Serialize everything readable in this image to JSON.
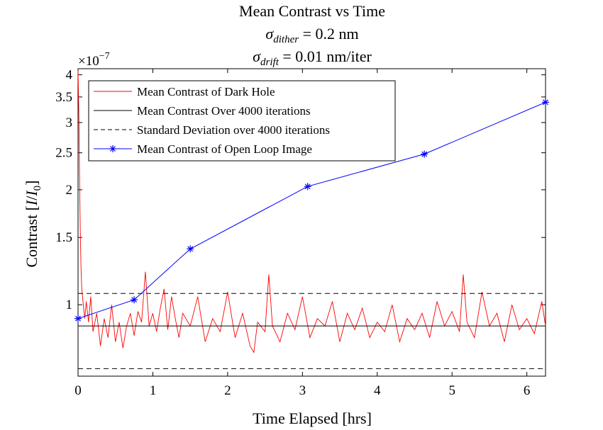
{
  "chart_data": {
    "type": "line",
    "title": "Mean Contrast vs Time",
    "subtitle_1": "σdither = 0.2 nm",
    "subtitle_2": "σdrift = 0.01 nm/iter",
    "xlabel": "Time Elapsed [hrs]",
    "ylabel": "Contrast [I/I0]",
    "y_exponent": "×10−7",
    "y_scale": "log",
    "xlim": [
      0,
      6.25
    ],
    "ylim": [
      0.65,
      4.15
    ],
    "x_ticks": [
      "0",
      "1",
      "2",
      "3",
      "4",
      "5",
      "6"
    ],
    "y_ticks": [
      "1",
      "1.5",
      "2",
      "2.5",
      "3",
      "3.5",
      "4"
    ],
    "grid": false,
    "legend_position": "top-left",
    "series": [
      {
        "name": "Mean Contrast of Dark Hole",
        "color": "#ff0000",
        "style": "solid",
        "x": [
          0.0,
          0.01,
          0.02,
          0.03,
          0.04,
          0.05,
          0.07,
          0.09,
          0.11,
          0.14,
          0.17,
          0.2,
          0.25,
          0.3,
          0.35,
          0.4,
          0.45,
          0.5,
          0.55,
          0.6,
          0.65,
          0.7,
          0.75,
          0.8,
          0.85,
          0.9,
          0.95,
          1.0,
          1.05,
          1.1,
          1.15,
          1.2,
          1.25,
          1.3,
          1.35,
          1.4,
          1.5,
          1.6,
          1.7,
          1.8,
          1.9,
          2.0,
          2.1,
          2.2,
          2.3,
          2.35,
          2.4,
          2.5,
          2.55,
          2.6,
          2.7,
          2.8,
          2.9,
          3.0,
          3.1,
          3.2,
          3.3,
          3.4,
          3.5,
          3.6,
          3.7,
          3.8,
          3.9,
          4.0,
          4.1,
          4.2,
          4.3,
          4.4,
          4.5,
          4.6,
          4.7,
          4.8,
          4.9,
          5.0,
          5.1,
          5.15,
          5.2,
          5.3,
          5.4,
          5.5,
          5.6,
          5.7,
          5.8,
          5.9,
          6.0,
          6.1,
          6.2,
          6.25
        ],
        "y": [
          4.1,
          3.2,
          2.2,
          1.55,
          1.25,
          1.1,
          1.0,
          0.92,
          1.02,
          0.9,
          1.05,
          0.85,
          0.95,
          0.78,
          0.92,
          0.82,
          1.0,
          0.8,
          0.9,
          0.77,
          0.88,
          0.95,
          0.83,
          0.96,
          0.9,
          1.22,
          0.88,
          0.95,
          0.85,
          0.98,
          1.1,
          0.86,
          1.05,
          0.92,
          0.82,
          0.95,
          0.88,
          1.05,
          0.8,
          0.92,
          0.85,
          1.08,
          0.82,
          0.95,
          0.78,
          0.75,
          0.9,
          0.85,
          1.2,
          0.88,
          0.8,
          0.95,
          0.86,
          1.05,
          0.82,
          0.92,
          0.88,
          1.02,
          0.8,
          0.95,
          0.86,
          0.98,
          0.82,
          0.9,
          0.85,
          1.0,
          0.8,
          0.92,
          0.86,
          0.95,
          0.82,
          1.02,
          0.88,
          0.96,
          0.85,
          1.2,
          0.9,
          0.82,
          1.08,
          0.88,
          0.95,
          0.8,
          1.0,
          0.86,
          0.92,
          0.84,
          1.02,
          0.88
        ]
      },
      {
        "name": "Mean Contrast Over 4000 iterations",
        "color": "#000000",
        "style": "solid",
        "x": [
          0,
          6.25
        ],
        "y": [
          0.88,
          0.88
        ]
      },
      {
        "name": "Standard Deviation over 4000 iterations",
        "color": "#000000",
        "style": "dashed",
        "x": [
          0,
          6.25
        ],
        "y": [
          1.07,
          1.07
        ]
      },
      {
        "name": "",
        "color": "#000000",
        "style": "dashed",
        "x": [
          0,
          6.25
        ],
        "y": [
          0.68,
          0.68
        ]
      },
      {
        "name": "Mean Contrast of Open Loop Image",
        "color": "#0000ff",
        "style": "solid",
        "marker": "asterisk",
        "x": [
          0.0,
          0.75,
          1.5,
          3.07,
          4.63,
          6.25
        ],
        "y": [
          0.92,
          1.03,
          1.4,
          2.04,
          2.48,
          3.39
        ]
      }
    ]
  }
}
